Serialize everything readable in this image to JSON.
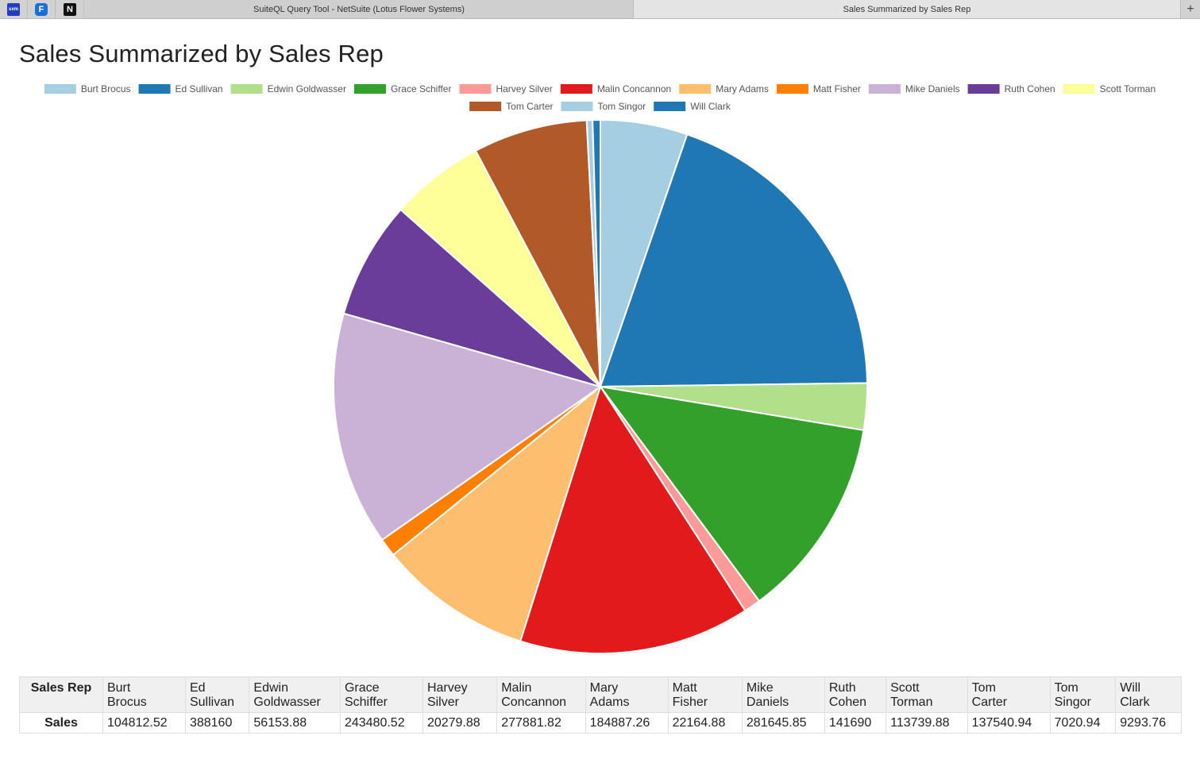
{
  "tabs": [
    {
      "label": "SuiteQL Query Tool - NetSuite (Lotus Flower Systems)",
      "active": false
    },
    {
      "label": "Sales Summarized by Sales Rep",
      "active": true
    }
  ],
  "pinned_tabs": [
    {
      "icon": "sxm-app-icon",
      "label": "sxm"
    },
    {
      "icon": "f-app-icon",
      "label": "F"
    },
    {
      "icon": "n-app-icon",
      "label": "N"
    }
  ],
  "new_tab_label": "+",
  "page_title": "Sales Summarized by Sales Rep",
  "table": {
    "row_header_label": "Sales Rep",
    "values_label": "Sales"
  },
  "chart_data": {
    "type": "pie",
    "title": "Sales Summarized by Sales Rep",
    "legend_position": "top",
    "categories": [
      "Burt Brocus",
      "Ed Sullivan",
      "Edwin Goldwasser",
      "Grace Schiffer",
      "Harvey Silver",
      "Malin Concannon",
      "Mary Adams",
      "Matt Fisher",
      "Mike Daniels",
      "Ruth Cohen",
      "Scott Torman",
      "Tom Carter",
      "Tom Singor",
      "Will Clark"
    ],
    "values": [
      104812.52,
      388160,
      56153.88,
      243480.52,
      20279.88,
      277881.82,
      184887.26,
      22164.88,
      281645.85,
      141690,
      113739.88,
      137540.94,
      7020.94,
      9293.76
    ],
    "value_labels": [
      "104812.52",
      "388160",
      "56153.88",
      "243480.52",
      "20279.88",
      "277881.82",
      "184887.26",
      "22164.88",
      "281645.85",
      "141690",
      "113739.88",
      "137540.94",
      "7020.94",
      "9293.76"
    ],
    "colors": [
      "#a6cee3",
      "#1f78b4",
      "#b2df8a",
      "#33a02c",
      "#fb9a99",
      "#e31a1c",
      "#fdbf6f",
      "#ff7f00",
      "#cab2d6",
      "#6a3d9a",
      "#ffff99",
      "#b15928",
      "#a6cee3",
      "#1f78b4"
    ]
  }
}
